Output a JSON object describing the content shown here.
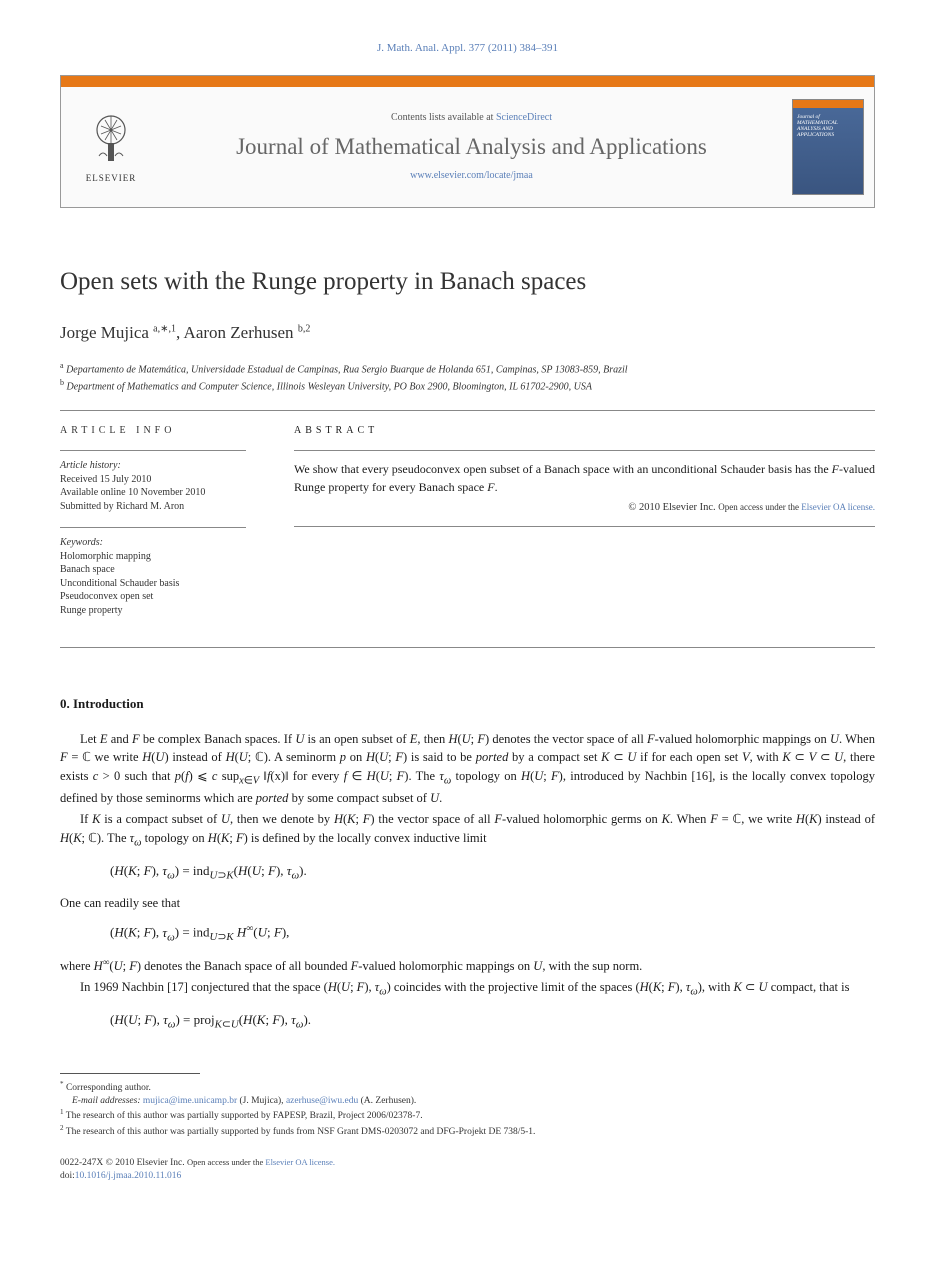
{
  "citation": "J. Math. Anal. Appl. 377 (2011) 384–391",
  "header": {
    "contents_prefix": "Contents lists available at ",
    "contents_link": "ScienceDirect",
    "journal_name": "Journal of Mathematical Analysis and Applications",
    "journal_url": "www.elsevier.com/locate/jmaa",
    "publisher": "ELSEVIER",
    "cover_title": "Journal of MATHEMATICAL ANALYSIS AND APPLICATIONS"
  },
  "article": {
    "title": "Open sets with the Runge property in Banach spaces",
    "authors_html": "Jorge Mujica <sup>a,∗,1</sup>, Aaron Zerhusen <sup>b,2</sup>",
    "affiliations": [
      "Departamento de Matemática, Universidade Estadual de Campinas, Rua Sergio Buarque de Holanda 651, Campinas, SP 13083-859, Brazil",
      "Department of Mathematics and Computer Science, Illinois Wesleyan University, PO Box 2900, Bloomington, IL 61702-2900, USA"
    ]
  },
  "info": {
    "heading": "ARTICLE INFO",
    "history_label": "Article history:",
    "history": [
      "Received 15 July 2010",
      "Available online 10 November 2010",
      "Submitted by Richard M. Aron"
    ],
    "keywords_label": "Keywords:",
    "keywords": [
      "Holomorphic mapping",
      "Banach space",
      "Unconditional Schauder basis",
      "Pseudoconvex open set",
      "Runge property"
    ]
  },
  "abstract": {
    "heading": "ABSTRACT",
    "text": "We show that every pseudoconvex open subset of a Banach space with an unconditional Schauder basis has the F-valued Runge property for every Banach space F.",
    "copyright": "© 2010 Elsevier Inc.",
    "oa_text": "Open access under the ",
    "oa_link": "Elsevier OA license."
  },
  "section0": {
    "heading": "0. Introduction",
    "p1": "Let E and F be complex Banach spaces. If U is an open subset of E, then ℋ(U; F) denotes the vector space of all F-valued holomorphic mappings on U. When F = ℂ we write ℋ(U) instead of ℋ(U; ℂ). A seminorm p on ℋ(U; F) is said to be ported by a compact set K ⊂ U if for each open set V, with K ⊂ V ⊂ U, there exists c > 0 such that p(f) ⩽ c sup_{x∈V} ‖f(x)‖ for every f ∈ ℋ(U; F). The τ_ω topology on ℋ(U; F), introduced by Nachbin [16], is the locally convex topology defined by those seminorms which are ported by some compact subset of U.",
    "p2": "If K is a compact subset of U, then we denote by ℋ(K; F) the vector space of all F-valued holomorphic germs on K. When F = ℂ, we write ℋ(K) instead of ℋ(K; ℂ). The τ_ω topology on ℋ(K; F) is defined by the locally convex inductive limit",
    "eq1": "(ℋ(K; F), τ_ω) = ind_{U⊃K} (ℋ(U; F), τ_ω).",
    "p3": "One can readily see that",
    "eq2": "(ℋ(K; F), τ_ω) = ind_{U⊃K} ℋ^∞(U; F),",
    "p4": "where ℋ^∞(U; F) denotes the Banach space of all bounded F-valued holomorphic mappings on U, with the sup norm.",
    "p5": "In 1969 Nachbin [17] conjectured that the space (ℋ(U; F), τ_ω) coincides with the projective limit of the spaces (ℋ(K; F), τ_ω), with K ⊂ U compact, that is",
    "eq3": "(ℋ(U; F), τ_ω) = proj_{K⊂U} (ℋ(K; F), τ_ω)."
  },
  "footnotes": {
    "corr": "Corresponding author.",
    "email_label": "E-mail addresses:",
    "email1": "mujica@ime.unicamp.br",
    "email1_who": "(J. Mujica),",
    "email2": "azerhuse@iwu.edu",
    "email2_who": "(A. Zerhusen).",
    "n1": "The research of this author was partially supported by FAPESP, Brazil, Project 2006/02378-7.",
    "n2": "The research of this author was partially supported by funds from NSF Grant DMS-0203072 and DFG-Projekt DE 738/5-1."
  },
  "footer": {
    "issn": "0022-247X",
    "cp": "© 2010 Elsevier Inc.",
    "oa_text": "Open access under the ",
    "oa_link": "Elsevier OA license.",
    "doi_label": "doi:",
    "doi": "10.1016/j.jmaa.2010.11.016"
  },
  "colors": {
    "orange": "#e67817",
    "link": "#5a7fb8",
    "text": "#1a1a1a",
    "gray_text": "#666666",
    "border": "#888888",
    "cover_bg": "#4a6a9a"
  }
}
